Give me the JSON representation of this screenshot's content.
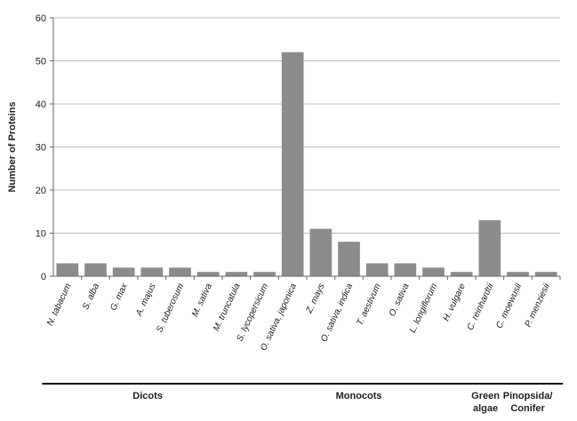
{
  "chart_data": {
    "type": "bar",
    "ylabel": "Number of Proteins",
    "xlabel": "",
    "ylim": [
      0,
      60
    ],
    "yticks": [
      0,
      10,
      20,
      30,
      40,
      50,
      60
    ],
    "grid": true,
    "bar_color": "#8c8c8c",
    "categories": [
      "N. tabacum",
      "S. alba",
      "G. max",
      "A. majus",
      "S. tuberosum",
      "M. sativa",
      "M. truncatula",
      "S. lycopersicum",
      "O. sativa, japonica",
      "Z. mays",
      "O. sativa, indica",
      "T. aestivum",
      "O. sativa",
      "L. longiflorum",
      "H. vulgare",
      "C. reinhardtii",
      "C. moewusii",
      "P. menziesii"
    ],
    "values": [
      3,
      3,
      2,
      2,
      2,
      1,
      1,
      1,
      52,
      11,
      8,
      3,
      3,
      2,
      1,
      13,
      1,
      1
    ],
    "groups": [
      {
        "label": "Dicots",
        "start": 0,
        "end": 6
      },
      {
        "label": "Monocots",
        "start": 7,
        "end": 14
      },
      {
        "label": "Green\nalgae",
        "start": 15,
        "end": 15
      },
      {
        "label": "Pinopsida/\nConifer",
        "start": 16,
        "end": 17
      }
    ]
  }
}
